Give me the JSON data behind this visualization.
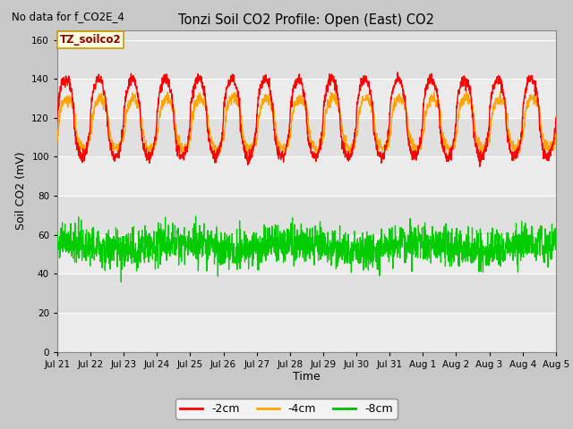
{
  "title": "Tonzi Soil CO2 Profile: Open (East) CO2",
  "top_left_text": "No data for f_CO2E_4",
  "ylabel": "Soil CO2 (mV)",
  "xlabel": "Time",
  "annotation_box": "TZ_soilco2",
  "ylim": [
    0,
    165
  ],
  "yticks": [
    0,
    20,
    40,
    60,
    80,
    100,
    120,
    140,
    160
  ],
  "xtick_labels": [
    "Jul 21",
    "Jul 22",
    "Jul 23",
    "Jul 24",
    "Jul 25",
    "Jul 26",
    "Jul 27",
    "Jul 28",
    "Jul 29",
    "Jul 30",
    "Jul 31",
    "Aug 1",
    "Aug 2",
    "Aug 3",
    "Aug 4",
    "Aug 5"
  ],
  "legend_labels": [
    "-2cm",
    "-4cm",
    "-8cm"
  ],
  "legend_colors": [
    "#ff0000",
    "#ffa500",
    "#00bb00"
  ],
  "line_colors": [
    "#ff0000",
    "#ffa500",
    "#00cc00"
  ],
  "background_color": "#c8c8c8",
  "plot_bg_color": "#e0e0e0",
  "plot_bg_alt": "#ebebeb",
  "n_points": 2000,
  "n_days": 15,
  "series_2cm_base": 120,
  "series_2cm_amp": 19,
  "series_4cm_base": 116,
  "series_4cm_amp": 12,
  "series_8cm_base": 54,
  "series_8cm_noise": 5,
  "noise_2cm": 1.5,
  "noise_4cm": 1.5
}
